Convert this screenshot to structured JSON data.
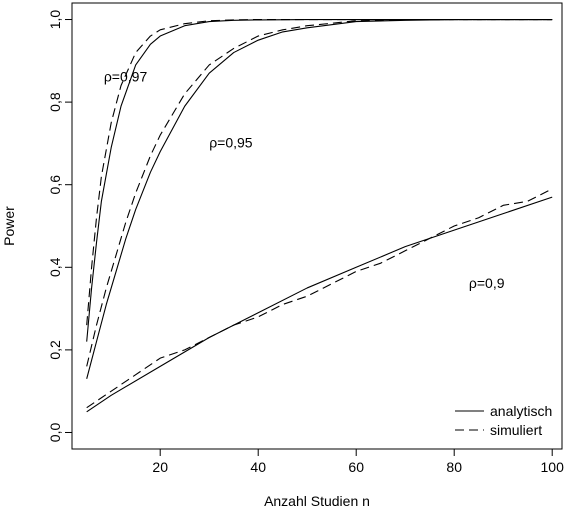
{
  "chart_data": {
    "type": "line",
    "xlabel": "Anzahl Studien n",
    "ylabel": "Power",
    "xlim": [
      2,
      102
    ],
    "ylim": [
      -0.04,
      1.04
    ],
    "x_ticks": [
      20,
      40,
      60,
      80,
      100
    ],
    "x_tick_labels": [
      "20",
      "40",
      "60",
      "80",
      "100"
    ],
    "y_ticks": [
      0.0,
      0.2,
      0.4,
      0.6,
      0.8,
      1.0
    ],
    "y_tick_labels": [
      "0,0",
      "0,2",
      "0,4",
      "0,6",
      "0,8",
      "1,0"
    ],
    "grid": false,
    "legend_position": "bottom-right",
    "legend": [
      {
        "label": "analytisch",
        "style": "solid"
      },
      {
        "label": "simuliert",
        "style": "dashed"
      }
    ],
    "annotations": [
      {
        "text": "ρ=0,97",
        "x": 8.5,
        "y": 0.85
      },
      {
        "text": "ρ=0,95",
        "x": 30,
        "y": 0.69
      },
      {
        "text": "ρ=0,9",
        "x": 83,
        "y": 0.35
      }
    ],
    "series": [
      {
        "group": "rho=0,97",
        "style": "solid",
        "x": [
          5,
          6,
          7,
          8,
          10,
          12,
          15,
          18,
          20,
          25,
          30,
          35,
          40,
          50,
          60,
          80,
          100
        ],
        "y": [
          0.22,
          0.35,
          0.46,
          0.56,
          0.69,
          0.79,
          0.89,
          0.94,
          0.96,
          0.985,
          0.995,
          0.998,
          0.999,
          1.0,
          1.0,
          1.0,
          1.0
        ]
      },
      {
        "group": "rho=0,97",
        "style": "dashed",
        "x": [
          5,
          6,
          7,
          8,
          10,
          12,
          15,
          18,
          20,
          25,
          30,
          35,
          40,
          50,
          60,
          80,
          100
        ],
        "y": [
          0.26,
          0.4,
          0.52,
          0.62,
          0.75,
          0.84,
          0.92,
          0.96,
          0.975,
          0.99,
          0.997,
          0.999,
          1.0,
          1.0,
          1.0,
          1.0,
          1.0
        ]
      },
      {
        "group": "rho=0,95",
        "style": "solid",
        "x": [
          5,
          7,
          9,
          11,
          13,
          15,
          18,
          20,
          25,
          30,
          35,
          40,
          45,
          50,
          60,
          70,
          80,
          100
        ],
        "y": [
          0.13,
          0.22,
          0.31,
          0.39,
          0.47,
          0.54,
          0.63,
          0.68,
          0.79,
          0.87,
          0.92,
          0.95,
          0.97,
          0.98,
          0.995,
          0.998,
          1.0,
          1.0
        ]
      },
      {
        "group": "rho=0,95",
        "style": "dashed",
        "x": [
          5,
          7,
          9,
          11,
          13,
          15,
          18,
          20,
          25,
          30,
          35,
          40,
          45,
          50,
          60,
          70,
          80,
          100
        ],
        "y": [
          0.16,
          0.26,
          0.35,
          0.43,
          0.51,
          0.58,
          0.67,
          0.72,
          0.82,
          0.89,
          0.93,
          0.96,
          0.975,
          0.985,
          0.997,
          0.999,
          1.0,
          1.0
        ]
      },
      {
        "group": "rho=0,9",
        "style": "solid",
        "x": [
          5,
          10,
          20,
          30,
          40,
          50,
          60,
          70,
          80,
          90,
          100
        ],
        "y": [
          0.05,
          0.09,
          0.16,
          0.23,
          0.29,
          0.35,
          0.4,
          0.45,
          0.49,
          0.53,
          0.57
        ]
      },
      {
        "group": "rho=0,9",
        "style": "dashed",
        "x": [
          5,
          10,
          15,
          20,
          25,
          30,
          35,
          40,
          45,
          50,
          55,
          60,
          65,
          70,
          75,
          80,
          85,
          90,
          95,
          100
        ],
        "y": [
          0.06,
          0.1,
          0.14,
          0.18,
          0.2,
          0.23,
          0.26,
          0.28,
          0.31,
          0.33,
          0.36,
          0.39,
          0.41,
          0.44,
          0.47,
          0.5,
          0.52,
          0.55,
          0.56,
          0.59
        ]
      }
    ]
  }
}
